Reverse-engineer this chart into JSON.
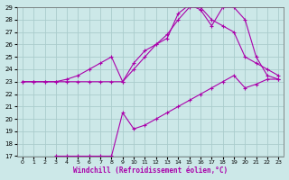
{
  "xlabel": "Windchill (Refroidissement éolien,°C)",
  "bg_color": "#cce8e8",
  "grid_color": "#aacccc",
  "line_color": "#aa00aa",
  "xlim": [
    -0.5,
    23.5
  ],
  "ylim": [
    17,
    29
  ],
  "xticks": [
    0,
    1,
    2,
    3,
    4,
    5,
    6,
    7,
    8,
    9,
    10,
    11,
    12,
    13,
    14,
    15,
    16,
    17,
    18,
    19,
    20,
    21,
    22,
    23
  ],
  "yticks": [
    17,
    18,
    19,
    20,
    21,
    22,
    23,
    24,
    25,
    26,
    27,
    28,
    29
  ],
  "line1_x": [
    0,
    1,
    2,
    3,
    4,
    5,
    6,
    7,
    8,
    9,
    10,
    11,
    12,
    13,
    14,
    15,
    16,
    17,
    18,
    19,
    20,
    21,
    22,
    23
  ],
  "line1_y": [
    23,
    23,
    23,
    23,
    23,
    23,
    23,
    23,
    23,
    23,
    24,
    25,
    26,
    26.5,
    28.5,
    29.2,
    28.8,
    27.5,
    29,
    29,
    28,
    25,
    23.5,
    23.2
  ],
  "line2_x": [
    0,
    1,
    2,
    3,
    4,
    5,
    6,
    7,
    8,
    9,
    10,
    11,
    12,
    13,
    14,
    15,
    16,
    17,
    18,
    19,
    20,
    21,
    22,
    23
  ],
  "line2_y": [
    23,
    23,
    23,
    23,
    23.2,
    23.5,
    24,
    24.5,
    25,
    23,
    24.5,
    25.5,
    26,
    26.8,
    28,
    29,
    29,
    28,
    27.5,
    27,
    25,
    24.5,
    24,
    23.5
  ],
  "line3_x": [
    3,
    4,
    5,
    6,
    7,
    8,
    9,
    10,
    11,
    12,
    13,
    14,
    15,
    16,
    17,
    18,
    19,
    20,
    21,
    22,
    23
  ],
  "line3_y": [
    17,
    17,
    17,
    17,
    17,
    17,
    20.5,
    19.2,
    19.5,
    20,
    20.5,
    21,
    21.5,
    22,
    22.5,
    23,
    23.5,
    22.5,
    22.8,
    23.2,
    23.2
  ]
}
